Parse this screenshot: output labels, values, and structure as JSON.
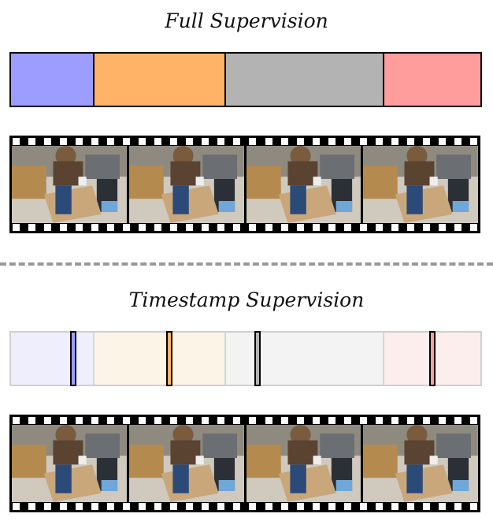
{
  "full_supervision": {
    "title": "Full Supervision",
    "segments": [
      {
        "color": "#9d9dff",
        "fraction": 0.175
      },
      {
        "color": "#ffb366",
        "fraction": 0.28
      },
      {
        "color": "#b3b3b3",
        "fraction": 0.337
      },
      {
        "color": "#ff9d9d",
        "fraction": 0.208
      }
    ]
  },
  "timestamp_supervision": {
    "title": "Timestamp Supervision",
    "segments": [
      {
        "color": "#eeeefd",
        "fraction": 0.175
      },
      {
        "color": "#fdf4e8",
        "fraction": 0.28
      },
      {
        "color": "#f3f3f3",
        "fraction": 0.337
      },
      {
        "color": "#fdeeee",
        "fraction": 0.208
      }
    ],
    "timestamps": [
      {
        "color": "#9d9dff",
        "position": 0.133
      },
      {
        "color": "#ffb366",
        "position": 0.337
      },
      {
        "color": "#b3b3b3",
        "position": 0.526
      },
      {
        "color": "#ff9d9d",
        "position": 0.897
      }
    ]
  },
  "film_strips": {
    "frames_per_strip": 4,
    "icon": "filmstrip-icon",
    "frame_content": "video-frame-person-kitchen"
  }
}
